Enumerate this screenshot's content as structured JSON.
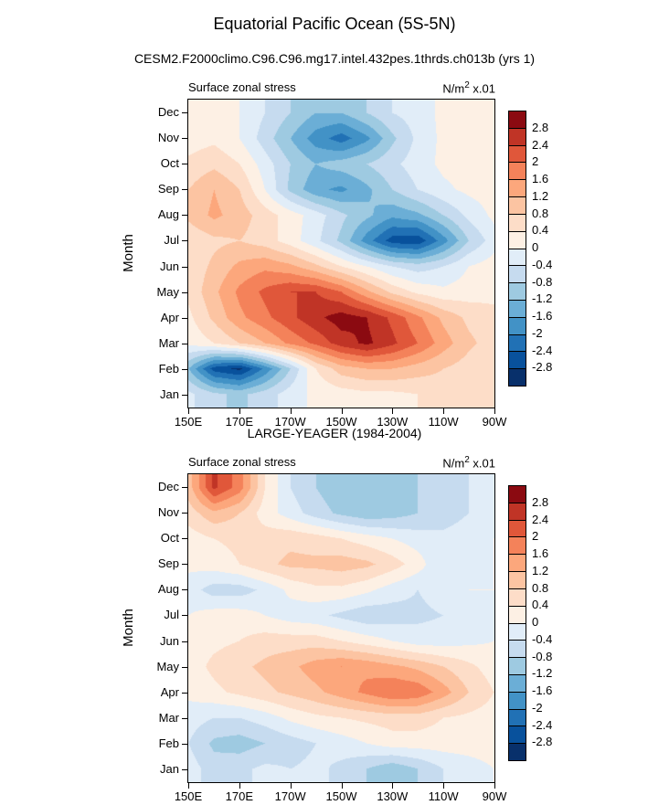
{
  "page": {
    "title": "Equatorial Pacific Ocean (5S-5N)",
    "subtitle": "CESM2.F2000climo.C96.C96.mg17.intel.432pes.1thrds.ch013b (yrs 1)",
    "middle_title": "LARGE-YEAGER (1984-2004)"
  },
  "colorbar": {
    "levels_desc": [
      2.8,
      2.4,
      2,
      1.6,
      1.2,
      0.8,
      0.4,
      0,
      -0.4,
      -0.8,
      -1.2,
      -1.6,
      -2,
      -2.4,
      -2.8
    ],
    "colors_low_to_high": [
      "#08306b",
      "#08519c",
      "#2171b5",
      "#4292c6",
      "#6baed6",
      "#9ecae1",
      "#c6dbef",
      "#e1edf8",
      "#fdf0e4",
      "#fdddc8",
      "#fcc4a2",
      "#fca77c",
      "#f4825a",
      "#e0573a",
      "#c03426",
      "#8b0a11"
    ]
  },
  "chart_data": [
    {
      "type": "heatmap",
      "title": "Surface zonal stress",
      "units": {
        "base": "N/m",
        "sup": "2",
        "rest": " x.01"
      },
      "ylabel": "Month",
      "x_tick_labels": [
        "150E",
        "170E",
        "170W",
        "150W",
        "130W",
        "110W",
        "90W"
      ],
      "lon_points": [
        "150E",
        "160E",
        "170E",
        "180",
        "170W",
        "160W",
        "150W",
        "140W",
        "130W",
        "120W",
        "110W",
        "100W",
        "90W"
      ],
      "y_tick_labels": [
        "Dec",
        "Nov",
        "Oct",
        "Sep",
        "Aug",
        "Jul",
        "Jun",
        "May",
        "Apr",
        "Mar",
        "Feb",
        "Jan"
      ],
      "contour_interval": 0.4,
      "value_range": [
        -2.8,
        2.8
      ],
      "values": [
        [
          0.2,
          0.2,
          0.0,
          -0.4,
          -0.8,
          -1.2,
          -1.2,
          -0.8,
          -0.4,
          -0.2,
          0.1,
          0.2,
          0.2
        ],
        [
          0.2,
          0.3,
          0.0,
          -0.6,
          -1.2,
          -1.8,
          -2.2,
          -1.7,
          -0.9,
          -0.3,
          0.1,
          0.2,
          0.2
        ],
        [
          0.5,
          0.7,
          0.4,
          -0.2,
          -0.8,
          -1.2,
          -1.0,
          -0.8,
          -0.5,
          -0.2,
          0.1,
          0.2,
          0.2
        ],
        [
          0.8,
          1.2,
          0.8,
          0.0,
          -0.9,
          -1.5,
          -1.7,
          -1.3,
          -0.8,
          -0.4,
          -0.1,
          0.1,
          0.2
        ],
        [
          0.9,
          1.3,
          1.0,
          0.6,
          0.2,
          -0.2,
          -0.7,
          -1.1,
          -1.5,
          -1.3,
          -0.8,
          -0.3,
          0.1
        ],
        [
          0.5,
          0.7,
          0.8,
          0.6,
          0.2,
          -0.3,
          -0.9,
          -1.8,
          -2.6,
          -2.7,
          -1.8,
          -0.8,
          -0.2
        ],
        [
          0.5,
          0.9,
          1.3,
          1.5,
          1.3,
          0.9,
          0.4,
          0.0,
          -0.4,
          -0.6,
          -0.4,
          0.0,
          0.2
        ],
        [
          0.5,
          1.1,
          1.7,
          2.1,
          2.4,
          2.4,
          2.0,
          1.3,
          0.7,
          0.3,
          0.1,
          0.2,
          0.3
        ],
        [
          0.3,
          0.9,
          1.5,
          1.9,
          2.3,
          2.7,
          3.0,
          2.8,
          2.3,
          1.7,
          1.1,
          0.7,
          0.5
        ],
        [
          0.1,
          0.4,
          0.8,
          1.2,
          1.7,
          2.1,
          2.6,
          2.9,
          2.5,
          2.0,
          1.4,
          0.9,
          0.6
        ],
        [
          -1.2,
          -2.6,
          -2.9,
          -1.9,
          -0.8,
          0.4,
          1.0,
          1.2,
          1.2,
          1.0,
          0.8,
          0.6,
          0.4
        ],
        [
          -0.3,
          -0.7,
          -0.9,
          -0.6,
          -0.2,
          0.1,
          0.2,
          0.3,
          0.3,
          0.4,
          0.6,
          0.6,
          0.4
        ]
      ]
    },
    {
      "type": "heatmap",
      "title": "Surface zonal stress",
      "units": {
        "base": "N/m",
        "sup": "2",
        "rest": " x.01"
      },
      "ylabel": "Month",
      "x_tick_labels": [
        "150E",
        "170E",
        "170W",
        "150W",
        "130W",
        "110W",
        "90W"
      ],
      "lon_points": [
        "150E",
        "160E",
        "170E",
        "180",
        "170W",
        "160W",
        "150W",
        "140W",
        "130W",
        "120W",
        "110W",
        "100W",
        "90W"
      ],
      "y_tick_labels": [
        "Dec",
        "Nov",
        "Oct",
        "Sep",
        "Aug",
        "Jul",
        "Jun",
        "May",
        "Apr",
        "Mar",
        "Feb",
        "Jan"
      ],
      "contour_interval": 0.4,
      "value_range": [
        -2.8,
        2.8
      ],
      "values": [
        [
          1.0,
          2.5,
          1.8,
          0.4,
          -0.4,
          -0.8,
          -1.1,
          -1.2,
          -1.0,
          -0.8,
          -0.6,
          -0.4,
          -0.2
        ],
        [
          0.6,
          1.1,
          0.8,
          0.2,
          -0.2,
          -0.6,
          -0.9,
          -1.1,
          -1.0,
          -0.8,
          -0.6,
          -0.4,
          -0.2
        ],
        [
          0.2,
          0.4,
          0.5,
          0.6,
          0.7,
          0.6,
          0.4,
          0.2,
          0.0,
          -0.2,
          -0.3,
          -0.2,
          0.0
        ],
        [
          0.1,
          0.2,
          0.4,
          0.7,
          0.9,
          0.9,
          1.0,
          0.9,
          0.6,
          0.2,
          -0.4,
          -0.2,
          0.0
        ],
        [
          -0.2,
          -0.6,
          -0.6,
          -0.3,
          0.1,
          0.3,
          0.3,
          0.1,
          -0.2,
          -0.4,
          -0.2,
          0.0,
          0.0
        ],
        [
          0.0,
          0.2,
          0.2,
          0.0,
          -0.2,
          -0.3,
          -0.5,
          -0.7,
          -0.6,
          -0.5,
          -0.4,
          -0.3,
          -0.2
        ],
        [
          0.2,
          0.3,
          0.4,
          0.6,
          0.6,
          0.6,
          0.4,
          0.2,
          0.0,
          -0.2,
          -0.2,
          -0.1,
          0.0
        ],
        [
          0.2,
          0.5,
          0.7,
          0.9,
          1.1,
          1.4,
          1.6,
          1.5,
          1.3,
          1.1,
          0.8,
          0.5,
          0.2
        ],
        [
          0.1,
          0.3,
          0.5,
          0.7,
          0.9,
          1.1,
          1.4,
          1.7,
          2.0,
          1.9,
          1.4,
          0.8,
          0.4
        ],
        [
          -0.2,
          -0.4,
          -0.4,
          -0.2,
          0.1,
          0.3,
          0.4,
          0.5,
          0.6,
          0.6,
          0.4,
          0.3,
          0.2
        ],
        [
          -0.4,
          -0.9,
          -1.0,
          -0.8,
          -0.6,
          -0.4,
          -0.2,
          0.0,
          0.2,
          0.2,
          0.2,
          0.2,
          0.2
        ],
        [
          -0.2,
          -0.6,
          -0.5,
          -0.3,
          -0.4,
          -0.3,
          -0.5,
          -0.8,
          -1.1,
          -0.8,
          -0.4,
          -0.2,
          0.0
        ]
      ]
    }
  ]
}
